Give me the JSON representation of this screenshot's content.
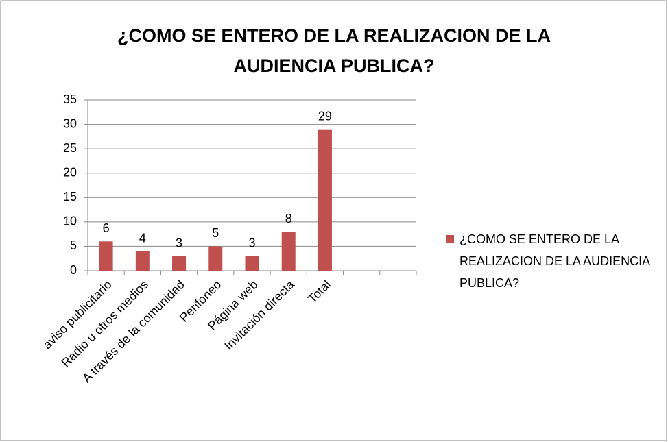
{
  "chart_data": {
    "type": "bar",
    "title": "¿COMO SE ENTERO DE LA REALIZACION DE LA AUDIENCIA PUBLICA?",
    "categories": [
      "aviso publicitario",
      "Radio u otros medios",
      "A través de la comunidad",
      "Perifoneo",
      "Página web",
      "Invitación directa",
      "Total",
      null,
      null
    ],
    "series": [
      {
        "name": "¿COMO SE ENTERO DE LA REALIZACION DE LA AUDIENCIA PUBLICA?",
        "color": "#c0504d",
        "values": [
          6,
          4,
          3,
          5,
          3,
          8,
          29,
          null,
          null
        ]
      }
    ],
    "ylim": [
      0,
      35
    ],
    "yticks": [
      0,
      5,
      10,
      15,
      20,
      25,
      30,
      35
    ],
    "grid": true,
    "legend": "right"
  }
}
